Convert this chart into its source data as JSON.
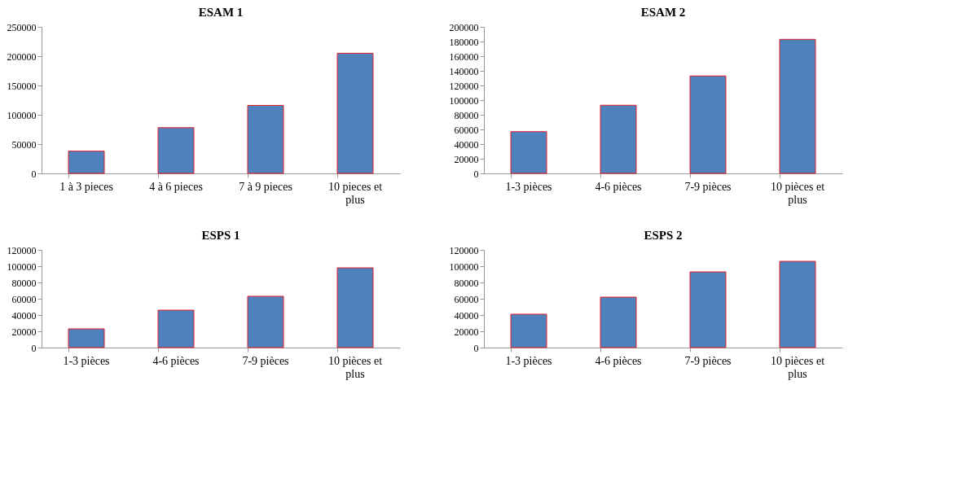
{
  "chart_data": [
    {
      "type": "bar",
      "title": "ESAM 1",
      "categories": [
        "1 à 3 pieces",
        "4 à 6 pieces",
        "7 à 9 pieces",
        "10 pieces et plus"
      ],
      "values": [
        38000,
        78000,
        116000,
        205000
      ],
      "color": "#4f81bd",
      "ylim": [
        0,
        250000
      ],
      "yticks": [
        0,
        50000,
        100000,
        150000,
        200000,
        250000
      ],
      "grid": false
    },
    {
      "type": "bar",
      "title": "ESAM 2",
      "categories": [
        "1-3 pièces",
        "4-6 pièces",
        "7-9 pièces",
        "10 pièces et plus"
      ],
      "values": [
        57000,
        93000,
        133000,
        183000
      ],
      "color": "#4f81bd",
      "ylim": [
        0,
        200000
      ],
      "yticks": [
        0,
        20000,
        40000,
        60000,
        80000,
        100000,
        120000,
        140000,
        160000,
        180000,
        200000
      ],
      "grid": false
    },
    {
      "type": "bar",
      "title": "ESPS 1",
      "categories": [
        "1-3 pièces",
        "4-6 pièces",
        "7-9 pièces",
        "10 pièces et plus"
      ],
      "values": [
        23000,
        46000,
        63000,
        98000
      ],
      "color": "#4f81bd",
      "ylim": [
        0,
        120000
      ],
      "yticks": [
        0,
        20000,
        40000,
        60000,
        80000,
        100000,
        120000
      ],
      "grid": false
    },
    {
      "type": "bar",
      "title": "ESPS 2",
      "categories": [
        "1-3 pièces",
        "4-6 pièces",
        "7-9 pièces",
        "10 pièces et plus"
      ],
      "values": [
        41000,
        62000,
        93000,
        106000
      ],
      "color": "#4f81bd",
      "ylim": [
        0,
        120000
      ],
      "yticks": [
        0,
        20000,
        40000,
        60000,
        80000,
        100000,
        120000
      ],
      "grid": false
    }
  ]
}
